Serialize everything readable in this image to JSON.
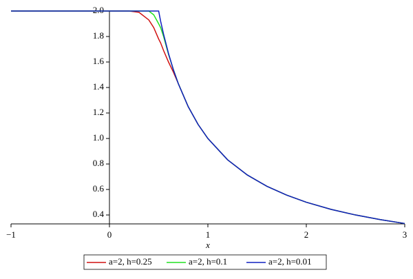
{
  "chart_data": {
    "type": "line",
    "x_label": "x",
    "x": [
      -1,
      0,
      0.2,
      0.3,
      0.4,
      0.45,
      0.5,
      0.52,
      0.55,
      0.6,
      0.65,
      0.7,
      0.8,
      0.9,
      1,
      1.2,
      1.4,
      1.6,
      1.8,
      2,
      2.25,
      2.5,
      2.75,
      3
    ],
    "series": [
      {
        "name": "a=2, h=0.25",
        "color": "#d01010",
        "values": [
          2,
          2,
          2,
          1.99,
          1.93,
          1.87,
          1.78,
          1.75,
          1.69,
          1.6,
          1.52,
          1.43,
          1.25,
          1.111,
          1,
          0.833,
          0.714,
          0.625,
          0.556,
          0.5,
          0.444,
          0.4,
          0.364,
          0.333
        ]
      },
      {
        "name": "a=2, h=0.1",
        "color": "#20e020",
        "values": [
          2,
          2,
          2,
          2,
          2,
          1.97,
          1.9,
          1.87,
          1.8,
          1.66,
          1.54,
          1.43,
          1.25,
          1.111,
          1,
          0.833,
          0.714,
          0.625,
          0.556,
          0.5,
          0.444,
          0.4,
          0.364,
          0.333
        ]
      },
      {
        "name": "a=2, h=0.01",
        "color": "#1020c0",
        "values": [
          2,
          2,
          2,
          2,
          2,
          2,
          2,
          1.92,
          1.818,
          1.667,
          1.538,
          1.429,
          1.25,
          1.111,
          1,
          0.833,
          0.714,
          0.625,
          0.556,
          0.5,
          0.444,
          0.4,
          0.364,
          0.333
        ]
      }
    ],
    "xlim": [
      -1,
      3
    ],
    "ylim": [
      0.33,
      2.0
    ],
    "xticks": [
      {
        "value": -1,
        "label": "−1"
      },
      0,
      1,
      2,
      3
    ],
    "yticks": [
      0.4,
      0.6,
      0.8,
      {
        "value": 1.0,
        "label": "1.0"
      },
      1.2,
      1.4,
      1.6,
      1.8,
      {
        "value": 2.0,
        "label": "2.0"
      }
    ],
    "legend": "bottom"
  }
}
